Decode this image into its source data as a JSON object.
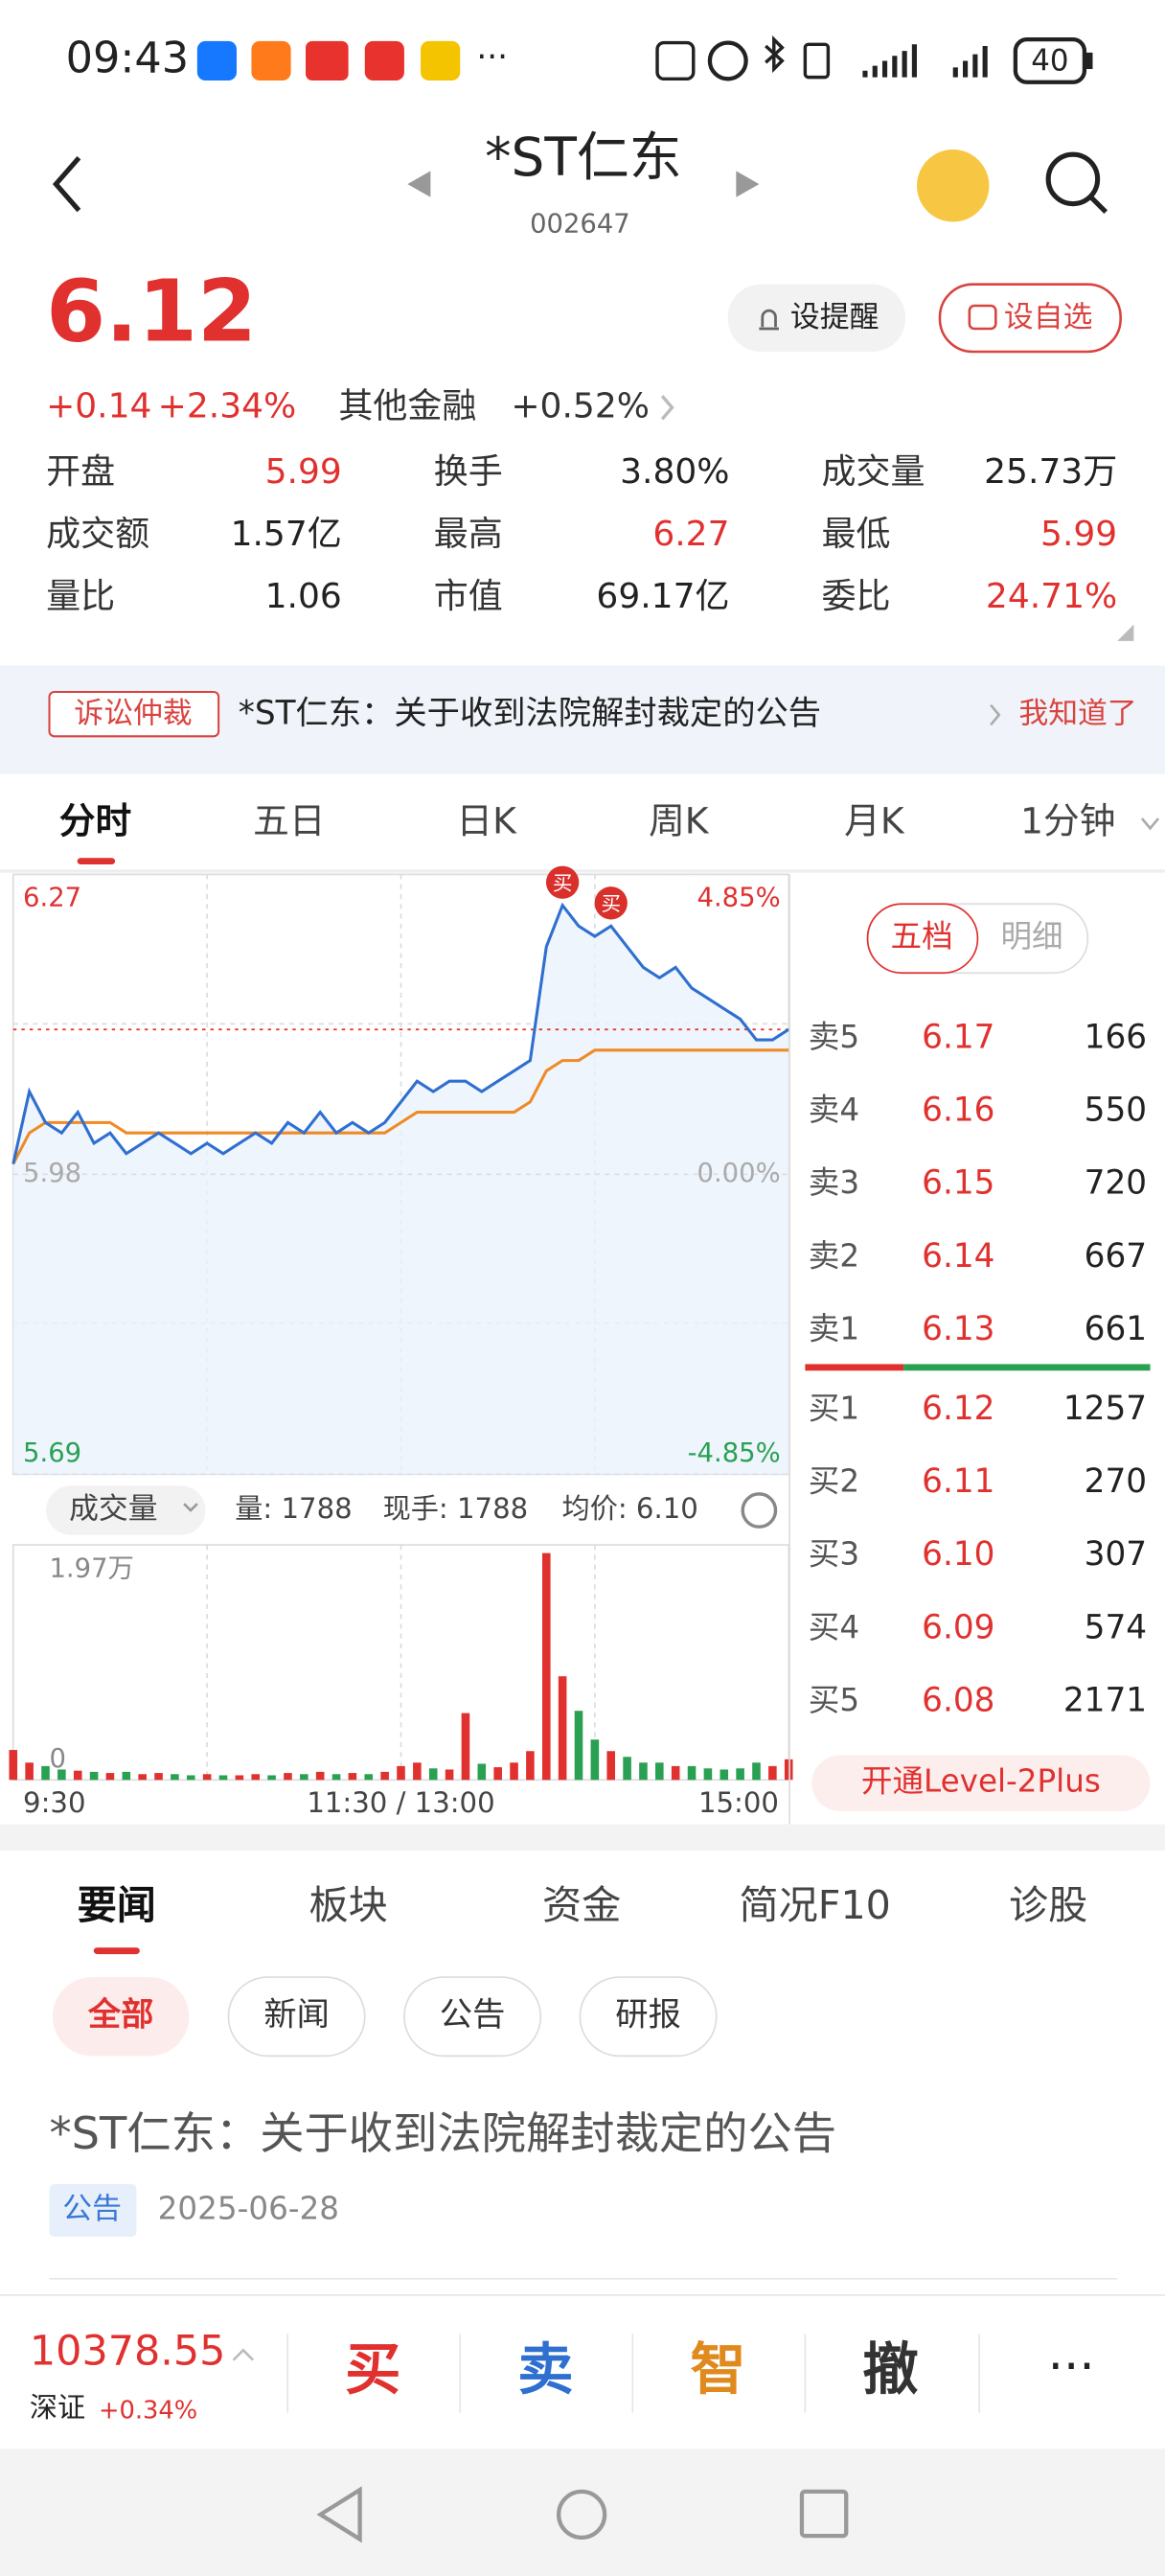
{
  "status": {
    "time": "09:43",
    "battery": "40"
  },
  "header": {
    "title": "*ST仁东",
    "code": "002647"
  },
  "quote": {
    "price": "6.12",
    "change": "+0.14",
    "change_pct": "+2.34%",
    "sector": "其他金融",
    "sector_pct": "+0.52%",
    "alert": "设提醒",
    "watch": "设自选"
  },
  "stats": [
    {
      "label": "开盘",
      "value": "5.99",
      "color": "#e0312f"
    },
    {
      "label": "换手",
      "value": "3.80%",
      "color": "#222222"
    },
    {
      "label": "成交量",
      "value": "25.73万",
      "color": "#222222"
    },
    {
      "label": "成交额",
      "value": "1.57亿",
      "color": "#222222"
    },
    {
      "label": "最高",
      "value": "6.27",
      "color": "#e0312f"
    },
    {
      "label": "最低",
      "value": "5.99",
      "color": "#e0312f"
    },
    {
      "label": "量比",
      "value": "1.06",
      "color": "#222222"
    },
    {
      "label": "市值",
      "value": "69.17亿",
      "color": "#222222"
    },
    {
      "label": "委比",
      "value": "24.71%",
      "color": "#e0312f"
    }
  ],
  "notice": {
    "tag": "诉讼仲裁",
    "text": "*ST仁东：关于收到法院解封裁定的公告",
    "action": "我知道了"
  },
  "tabs": [
    "分时",
    "五日",
    "日K",
    "周K",
    "月K",
    "1分钟"
  ],
  "chart_data": {
    "type": "line",
    "categories": [
      "9:30",
      null,
      null,
      null,
      null,
      null,
      null,
      null,
      null,
      null,
      null,
      null,
      null,
      null,
      null,
      null,
      null,
      null,
      null,
      null,
      null,
      null,
      null,
      null,
      "11:30 / 13:00",
      null,
      null,
      null,
      null,
      null,
      null,
      null,
      null,
      null,
      null,
      null,
      null,
      null,
      null,
      null,
      null,
      null,
      null,
      null,
      null,
      null,
      null,
      null,
      "15:00"
    ],
    "ylim": [
      5.69,
      6.27
    ],
    "yticks": [
      6.27,
      5.98,
      5.69
    ],
    "y2lim": [
      -4.85,
      4.85
    ],
    "y2ticks": [
      {
        "value": 4.85,
        "label": "4.85%"
      },
      {
        "value": 0,
        "label": "0.00%"
      },
      {
        "value": -4.85,
        "label": "-4.85%"
      }
    ],
    "series": [
      {
        "color": "#2f6fd0",
        "values": [
          5.99,
          6.06,
          6.03,
          6.02,
          6.04,
          6.01,
          6.02,
          6.0,
          6.01,
          6.02,
          6.01,
          6.0,
          6.01,
          6.0,
          6.01,
          6.02,
          6.01,
          6.03,
          6.02,
          6.04,
          6.02,
          6.03,
          6.02,
          6.03,
          6.05,
          6.07,
          6.06,
          6.07,
          6.07,
          6.06,
          6.07,
          6.08,
          6.09,
          6.2,
          6.24,
          6.22,
          6.21,
          6.22,
          6.2,
          6.18,
          6.17,
          6.18,
          6.16,
          6.15,
          6.14,
          6.13,
          6.11,
          6.11,
          6.12
        ]
      },
      {
        "color": "#f08a24",
        "values": [
          5.99,
          6.02,
          6.03,
          6.03,
          6.03,
          6.03,
          6.03,
          6.02,
          6.02,
          6.02,
          6.02,
          6.02,
          6.02,
          6.02,
          6.02,
          6.02,
          6.02,
          6.02,
          6.02,
          6.02,
          6.02,
          6.02,
          6.02,
          6.02,
          6.03,
          6.04,
          6.04,
          6.04,
          6.04,
          6.04,
          6.04,
          6.04,
          6.05,
          6.08,
          6.09,
          6.09,
          6.1,
          6.1,
          6.1,
          6.1,
          6.1,
          6.1,
          6.1,
          6.1,
          6.1,
          6.1,
          6.1,
          6.1,
          6.1
        ]
      }
    ],
    "trades": [
      {
        "label": "买",
        "x": 34
      },
      {
        "label": "买",
        "x": 37
      }
    ],
    "volume": {
      "name": "成交量",
      "info": [
        "量: 1788",
        "现手: 1788",
        "均价: 6.10"
      ],
      "ylim": [
        0,
        19700
      ],
      "yticks": [
        0,
        {
          "value": 19700,
          "label": "1.97万"
        }
      ],
      "values": [
        2600,
        1500,
        1200,
        900,
        800,
        700,
        600,
        700,
        500,
        600,
        500,
        400,
        500,
        400,
        400,
        500,
        400,
        600,
        500,
        700,
        500,
        600,
        500,
        700,
        1200,
        1500,
        1000,
        900,
        5800,
        1400,
        1100,
        1500,
        2500,
        19700,
        9000,
        6000,
        3500,
        2500,
        2000,
        1500,
        1500,
        1200,
        1200,
        1000,
        900,
        1000,
        1500,
        1200,
        1788
      ]
    }
  },
  "orderbook": {
    "tabs": [
      "五档",
      "明细"
    ],
    "asks": [
      {
        "name": "卖5",
        "price": "6.17",
        "volume": "166"
      },
      {
        "name": "卖4",
        "price": "6.16",
        "volume": "550"
      },
      {
        "name": "卖3",
        "price": "6.15",
        "volume": "720"
      },
      {
        "name": "卖2",
        "price": "6.14",
        "volume": "667"
      },
      {
        "name": "卖1",
        "price": "6.13",
        "volume": "661"
      }
    ],
    "bids": [
      {
        "name": "买1",
        "price": "6.12",
        "volume": "1257"
      },
      {
        "name": "买2",
        "price": "6.11",
        "volume": "270"
      },
      {
        "name": "买3",
        "price": "6.10",
        "volume": "307"
      },
      {
        "name": "买4",
        "price": "6.09",
        "volume": "574"
      },
      {
        "name": "买5",
        "price": "6.08",
        "volume": "2171"
      }
    ],
    "upgrade": "开通Level-2Plus"
  },
  "news": {
    "tabs": [
      "要闻",
      "板块",
      "资金",
      "简况F10",
      "诊股"
    ],
    "filters": [
      "全部",
      "新闻",
      "公告",
      "研报"
    ],
    "article": {
      "title": "*ST仁东：关于收到法院解封裁定的公告",
      "tag": "公告",
      "date": "2025-06-28"
    }
  },
  "footer": {
    "index_value": "10378.55",
    "index_name": "深证",
    "index_pct": "+0.34%",
    "actions": [
      "买",
      "卖",
      "智",
      "撤"
    ]
  }
}
